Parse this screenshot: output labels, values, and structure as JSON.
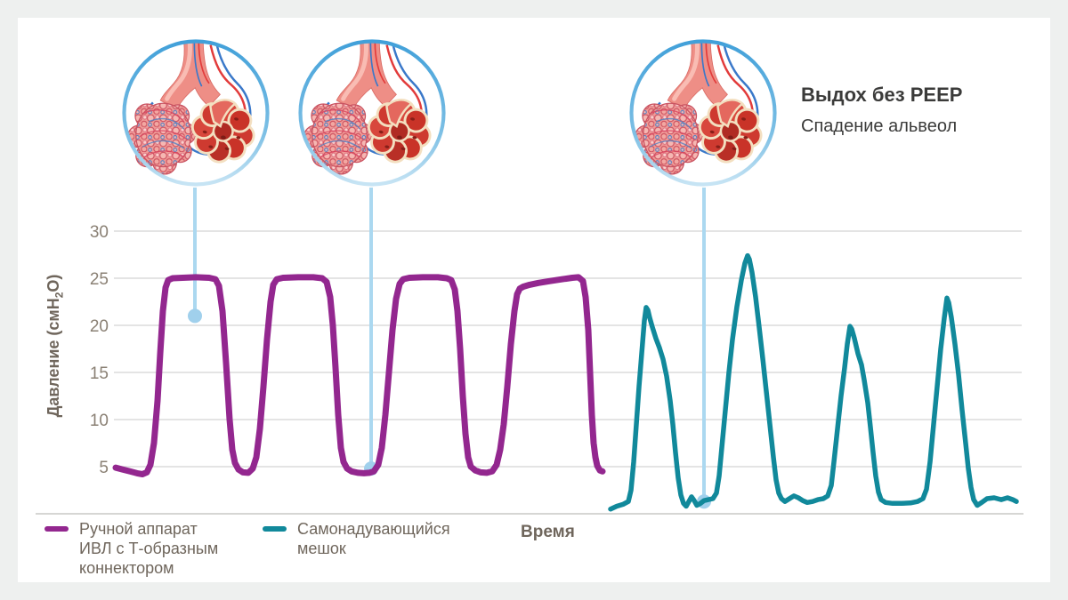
{
  "annotation": {
    "title": "Выдох без PEEP",
    "subtitle": "Спадение альвеол"
  },
  "y_axis": {
    "title_pre": "Давление (смH",
    "title_sub": "2",
    "title_post": "O)"
  },
  "x_axis": {
    "label": "Время"
  },
  "legend": {
    "items": [
      {
        "label": "Ручной аппарат\nИВЛ с Т-образным\nконнектором",
        "color": "#93278f"
      },
      {
        "label": "Самонадувающийся\nмешок",
        "color": "#11899b"
      }
    ]
  },
  "illustrations": [
    {
      "name": "alveoli-inflated"
    },
    {
      "name": "alveoli-partially-deflated"
    },
    {
      "name": "alveoli-collapsed"
    }
  ],
  "colors": {
    "bg": "#eef0ef",
    "card": "#ffffff",
    "purple": "#93278f",
    "teal": "#11899b",
    "grid": "#dcdcdc",
    "axis_line": "#c8c8c6",
    "axis_text": "#8a8074",
    "label_text": "#6f665c",
    "heading": "#3b3b3a",
    "connector": "#abd8f0",
    "connector_dot": "#a0d0ec",
    "ring_top": "#41a0d9",
    "ring_bottom": "#c7e4f4"
  },
  "chart_data": {
    "type": "line",
    "title": "",
    "xlabel": "Время",
    "ylabel": "Давление (смH2O)",
    "ylim": [
      0,
      30
    ],
    "yticks": [
      5,
      10,
      15,
      20,
      25,
      30
    ],
    "grid": true,
    "legend_position": "bottom-left",
    "series": [
      {
        "name": "Ручной аппарат ИВЛ с Т-образным коннектором",
        "color": "#93278f",
        "width": 7,
        "points": [
          [
            130,
            4.9
          ],
          [
            138,
            4.7
          ],
          [
            146,
            4.5
          ],
          [
            154,
            4.3
          ],
          [
            160,
            4.2
          ],
          [
            165,
            4.4
          ],
          [
            169,
            5.2
          ],
          [
            173,
            7.5
          ],
          [
            177,
            12
          ],
          [
            180,
            17
          ],
          [
            183,
            21.5
          ],
          [
            186,
            24
          ],
          [
            189,
            24.8
          ],
          [
            194,
            25
          ],
          [
            205,
            25.05
          ],
          [
            220,
            25.1
          ],
          [
            235,
            25.05
          ],
          [
            242,
            24.9
          ],
          [
            246,
            24.2
          ],
          [
            250,
            21.5
          ],
          [
            254,
            16
          ],
          [
            258,
            10
          ],
          [
            261,
            6.8
          ],
          [
            264,
            5.4
          ],
          [
            268,
            4.7
          ],
          [
            273,
            4.4
          ],
          [
            279,
            4.35
          ],
          [
            284,
            4.8
          ],
          [
            288,
            6
          ],
          [
            292,
            9
          ],
          [
            296,
            13.5
          ],
          [
            300,
            18.5
          ],
          [
            304,
            22.5
          ],
          [
            307,
            24.3
          ],
          [
            311,
            24.9
          ],
          [
            318,
            25.05
          ],
          [
            335,
            25.1
          ],
          [
            352,
            25.1
          ],
          [
            362,
            25
          ],
          [
            367,
            24.6
          ],
          [
            371,
            23
          ],
          [
            374,
            20
          ],
          [
            377,
            15.5
          ],
          [
            380,
            10.5
          ],
          [
            383,
            7
          ],
          [
            386,
            5.5
          ],
          [
            390,
            4.8
          ],
          [
            395,
            4.5
          ],
          [
            402,
            4.35
          ],
          [
            409,
            4.3
          ],
          [
            415,
            4.35
          ],
          [
            420,
            4.5
          ],
          [
            425,
            5.2
          ],
          [
            429,
            7
          ],
          [
            433,
            10.5
          ],
          [
            437,
            15
          ],
          [
            441,
            19.5
          ],
          [
            445,
            22.8
          ],
          [
            449,
            24.4
          ],
          [
            453,
            24.9
          ],
          [
            460,
            25.05
          ],
          [
            475,
            25.1
          ],
          [
            492,
            25.1
          ],
          [
            502,
            25
          ],
          [
            507,
            24.8
          ],
          [
            511,
            23.8
          ],
          [
            514,
            21.5
          ],
          [
            517,
            17.5
          ],
          [
            520,
            12.5
          ],
          [
            523,
            8.5
          ],
          [
            526,
            6
          ],
          [
            529,
            5
          ],
          [
            534,
            4.6
          ],
          [
            540,
            4.4
          ],
          [
            547,
            4.35
          ],
          [
            553,
            4.5
          ],
          [
            558,
            5.2
          ],
          [
            562,
            6.8
          ],
          [
            566,
            9.5
          ],
          [
            570,
            13.5
          ],
          [
            574,
            18
          ],
          [
            578,
            21.5
          ],
          [
            581,
            23.3
          ],
          [
            584,
            23.9
          ],
          [
            588,
            24.1
          ],
          [
            595,
            24.3
          ],
          [
            605,
            24.5
          ],
          [
            618,
            24.7
          ],
          [
            632,
            24.9
          ],
          [
            643,
            25.05
          ],
          [
            650,
            25.1
          ],
          [
            655,
            24.7
          ],
          [
            658,
            23
          ],
          [
            661,
            19.5
          ],
          [
            663,
            15
          ],
          [
            665,
            10.5
          ],
          [
            667,
            7.5
          ],
          [
            669,
            6
          ],
          [
            671,
            5.1
          ],
          [
            674,
            4.6
          ],
          [
            677,
            4.5
          ]
        ]
      },
      {
        "name": "Самонадувающийся мешок",
        "color": "#11899b",
        "width": 5.5,
        "points": [
          [
            686,
            0.5
          ],
          [
            693,
            0.8
          ],
          [
            700,
            1.0
          ],
          [
            706,
            1.3
          ],
          [
            709,
            2.5
          ],
          [
            712,
            5.5
          ],
          [
            715,
            9.5
          ],
          [
            718,
            13.5
          ],
          [
            721,
            17
          ],
          [
            724,
            20.5
          ],
          [
            726,
            21.9
          ],
          [
            728,
            21.6
          ],
          [
            730,
            20.8
          ],
          [
            733,
            19.8
          ],
          [
            737,
            18.6
          ],
          [
            741,
            17.6
          ],
          [
            745,
            16.4
          ],
          [
            749,
            14.6
          ],
          [
            753,
            12
          ],
          [
            756,
            9.5
          ],
          [
            759,
            6.5
          ],
          [
            762,
            3.8
          ],
          [
            765,
            2
          ],
          [
            768,
            1.1
          ],
          [
            771,
            0.8
          ],
          [
            774,
            1.3
          ],
          [
            777,
            1.8
          ],
          [
            780,
            1.4
          ],
          [
            783,
            0.9
          ],
          [
            787,
            1.1
          ],
          [
            791,
            1.4
          ],
          [
            796,
            1.5
          ],
          [
            801,
            1.6
          ],
          [
            805,
            2.2
          ],
          [
            808,
            4
          ],
          [
            811,
            7
          ],
          [
            815,
            11
          ],
          [
            819,
            15
          ],
          [
            823,
            18.5
          ],
          [
            828,
            22
          ],
          [
            833,
            24.8
          ],
          [
            837,
            26.6
          ],
          [
            840,
            27.4
          ],
          [
            842,
            27
          ],
          [
            845,
            25.6
          ],
          [
            849,
            23
          ],
          [
            853,
            19.8
          ],
          [
            857,
            16.5
          ],
          [
            861,
            13
          ],
          [
            865,
            9.5
          ],
          [
            869,
            6
          ],
          [
            872,
            3.6
          ],
          [
            875,
            2.2
          ],
          [
            878,
            1.6
          ],
          [
            882,
            1.3
          ],
          [
            887,
            1.6
          ],
          [
            892,
            1.9
          ],
          [
            897,
            1.7
          ],
          [
            902,
            1.4
          ],
          [
            907,
            1.2
          ],
          [
            913,
            1.3
          ],
          [
            919,
            1.5
          ],
          [
            925,
            1.6
          ],
          [
            930,
            1.9
          ],
          [
            934,
            3
          ],
          [
            937,
            5.5
          ],
          [
            941,
            9
          ],
          [
            945,
            12.5
          ],
          [
            949,
            15.5
          ],
          [
            952,
            18
          ],
          [
            955,
            19.9
          ],
          [
            957,
            19.6
          ],
          [
            960,
            18.6
          ],
          [
            964,
            17
          ],
          [
            968,
            15.8
          ],
          [
            971,
            14.2
          ],
          [
            975,
            11.8
          ],
          [
            978,
            9.2
          ],
          [
            981,
            6.5
          ],
          [
            984,
            4
          ],
          [
            987,
            2.3
          ],
          [
            990,
            1.5
          ],
          [
            995,
            1.2
          ],
          [
            1003,
            1.1
          ],
          [
            1013,
            1.1
          ],
          [
            1023,
            1.15
          ],
          [
            1031,
            1.3
          ],
          [
            1037,
            1.6
          ],
          [
            1041,
            2.6
          ],
          [
            1045,
            5.5
          ],
          [
            1049,
            9.5
          ],
          [
            1053,
            13.5
          ],
          [
            1057,
            17.5
          ],
          [
            1061,
            20.8
          ],
          [
            1064,
            22.9
          ],
          [
            1066,
            22.4
          ],
          [
            1069,
            20.8
          ],
          [
            1073,
            18
          ],
          [
            1077,
            14.8
          ],
          [
            1081,
            11
          ],
          [
            1085,
            7.5
          ],
          [
            1088,
            4.8
          ],
          [
            1091,
            2.8
          ],
          [
            1094,
            1.5
          ],
          [
            1098,
            0.9
          ],
          [
            1103,
            1.2
          ],
          [
            1109,
            1.6
          ],
          [
            1117,
            1.7
          ],
          [
            1125,
            1.5
          ],
          [
            1132,
            1.7
          ],
          [
            1138,
            1.5
          ],
          [
            1142,
            1.3
          ]
        ]
      }
    ],
    "annotations": {
      "callouts": [
        {
          "x": 219,
          "pressure": 21.0
        },
        {
          "x": 417,
          "pressure": 4.8
        },
        {
          "x": 791,
          "pressure": 1.3
        }
      ],
      "label": {
        "title": "Выдох без PEEP",
        "subtitle": "Спадение альвеол"
      }
    }
  }
}
